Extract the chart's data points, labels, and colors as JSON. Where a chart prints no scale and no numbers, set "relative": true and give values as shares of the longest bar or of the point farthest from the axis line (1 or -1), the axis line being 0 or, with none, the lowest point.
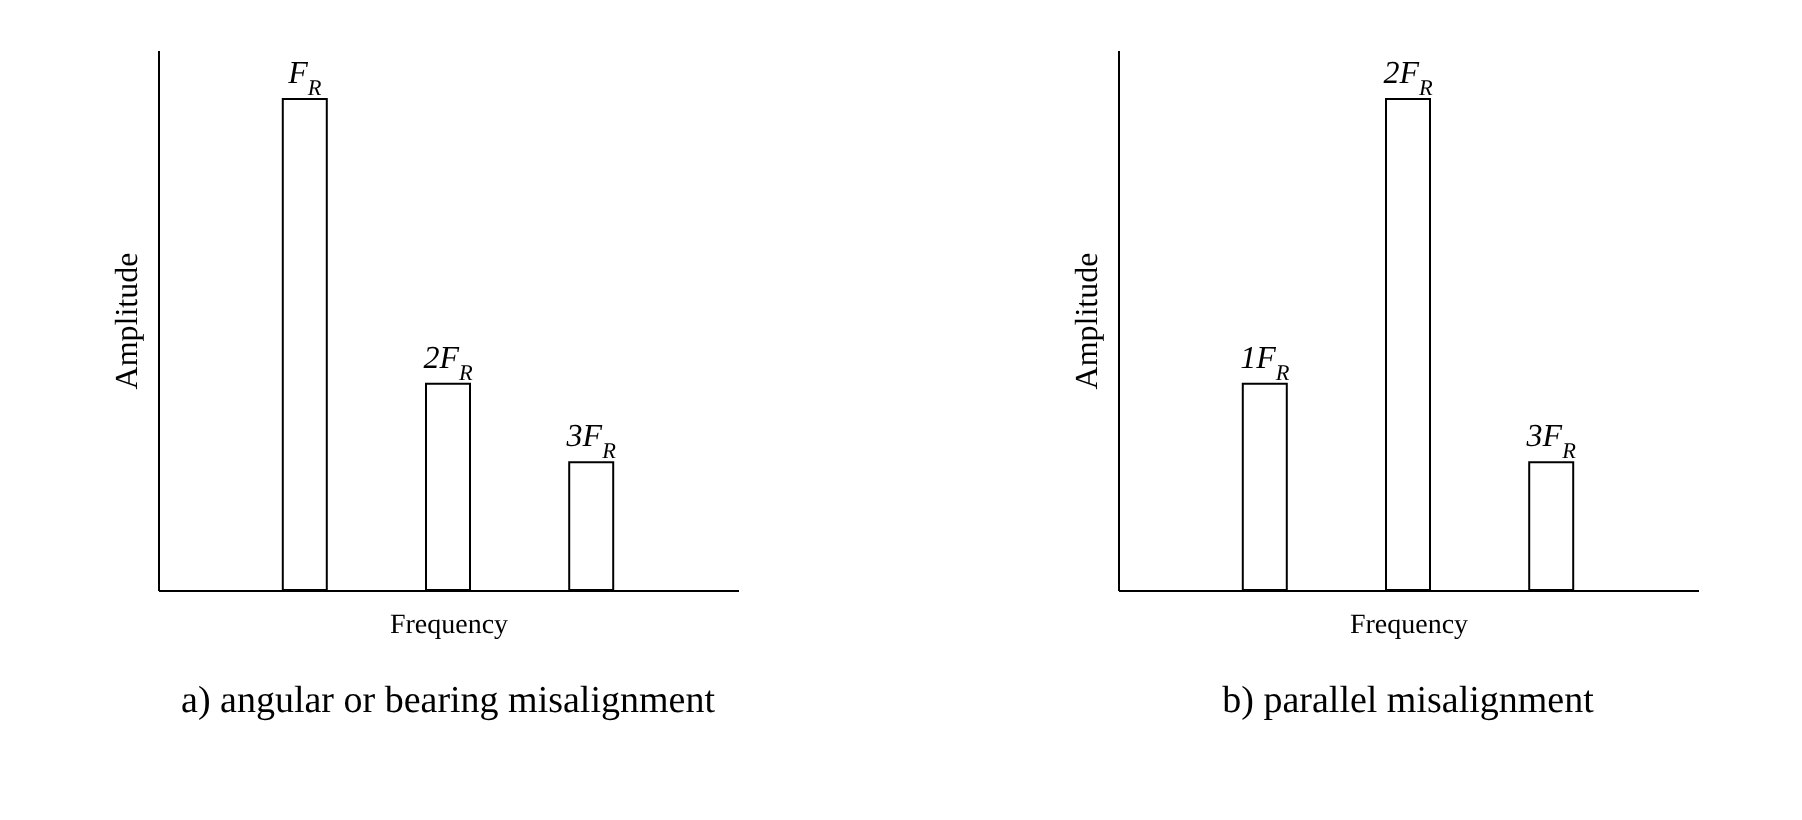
{
  "chart_data": [
    {
      "type": "bar",
      "relative": true,
      "categories": [
        null,
        null,
        null
      ],
      "values": [
        1,
        0.42,
        0.26
      ],
      "color": "#ffffff",
      "xlabel": "Frequency",
      "ylabel": "Amplitude",
      "annotations": [
        {
          "text": "F$_{R}$",
          "y": 1
        },
        {
          "text": "2F$_{R}$",
          "y": 0.42
        },
        {
          "text": "3F$_{R}$",
          "y": 0.26
        },
        "a) angular or bearing misalignment"
      ]
    },
    {
      "type": "bar",
      "relative": true,
      "categories": [
        null,
        null,
        null
      ],
      "values": [
        0.42,
        1,
        0.26
      ],
      "color": "#ffffff",
      "xlabel": "Frequency",
      "ylabel": "Amplitude",
      "annotations": [
        {
          "text": "1F$_{R}$",
          "y": 0.42
        },
        {
          "text": "2F$_{R}$",
          "y": 1
        },
        {
          "text": "3F$_{R}$",
          "y": 0.26
        },
        "b) parallel misalignment"
      ]
    }
  ]
}
